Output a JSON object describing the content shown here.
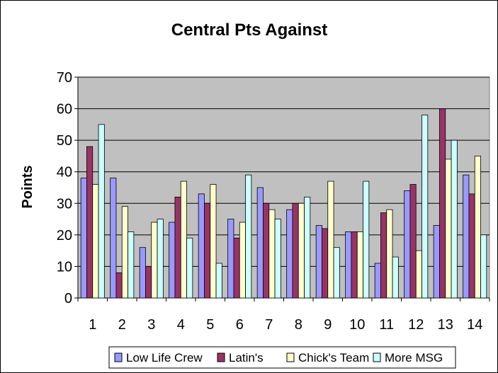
{
  "chart_data": {
    "type": "bar",
    "title": "Central Pts Against",
    "xlabel": "",
    "ylabel": "Points",
    "ylim": [
      0,
      70
    ],
    "yticks": [
      0,
      10,
      20,
      30,
      40,
      50,
      60,
      70
    ],
    "grid": true,
    "legend_position": "bottom",
    "categories": [
      "1",
      "2",
      "3",
      "4",
      "5",
      "6",
      "7",
      "8",
      "9",
      "10",
      "11",
      "12",
      "13",
      "14"
    ],
    "series": [
      {
        "name": "Low Life Crew",
        "color": "#9999ff",
        "values": [
          38,
          38,
          16,
          24,
          33,
          25,
          35,
          28,
          23,
          21,
          11,
          34,
          23,
          39
        ]
      },
      {
        "name": "Latin's",
        "color": "#993366",
        "values": [
          48,
          8,
          10,
          32,
          30,
          19,
          30,
          30,
          22,
          21,
          27,
          36,
          60,
          33
        ]
      },
      {
        "name": "Chick's Team",
        "color": "#ffffcc",
        "values": [
          36,
          29,
          24,
          37,
          36,
          24,
          28,
          30,
          37,
          21,
          28,
          15,
          44,
          45
        ]
      },
      {
        "name": "More MSG",
        "color": "#ccffff",
        "values": [
          55,
          21,
          25,
          19,
          11,
          39,
          25,
          32,
          16,
          37,
          13,
          58,
          50,
          20
        ]
      }
    ],
    "plot_background": "#c0c0c0"
  }
}
